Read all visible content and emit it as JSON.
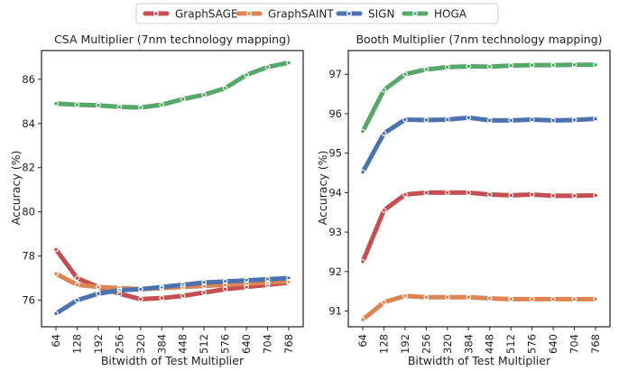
{
  "legend": [
    "GraphSAGE",
    "GraphSAINT",
    "SIGN",
    "HOGA"
  ],
  "colors": {
    "GraphSAGE": "#c44e52",
    "GraphSAINT": "#dd8452",
    "SIGN": "#4c72b0",
    "HOGA": "#55a868"
  },
  "chart_data": [
    {
      "type": "line",
      "title": "CSA Multiplier (7nm technology mapping)",
      "xlabel": "Bitwidth of Test Multiplier",
      "ylabel": "Accuracy (%)",
      "x": [
        64,
        128,
        192,
        256,
        320,
        384,
        448,
        512,
        576,
        640,
        704,
        768
      ],
      "x_ticks": [
        64,
        128,
        192,
        256,
        320,
        384,
        448,
        512,
        576,
        640,
        704,
        768
      ],
      "y_ticks": [
        76,
        78,
        80,
        82,
        84,
        86
      ],
      "ylim": [
        74.8,
        87.3
      ],
      "series": [
        {
          "name": "GraphSAGE",
          "values": [
            78.3,
            77.0,
            76.6,
            76.3,
            76.05,
            76.1,
            76.2,
            76.35,
            76.5,
            76.6,
            76.7,
            76.8
          ]
        },
        {
          "name": "GraphSAINT",
          "values": [
            77.2,
            76.7,
            76.6,
            76.55,
            76.5,
            76.55,
            76.6,
            76.65,
            76.7,
            76.75,
            76.8,
            76.85
          ]
        },
        {
          "name": "SIGN",
          "values": [
            75.4,
            76.0,
            76.3,
            76.45,
            76.5,
            76.6,
            76.7,
            76.8,
            76.85,
            76.9,
            76.95,
            77.0
          ]
        },
        {
          "name": "HOGA",
          "values": [
            84.9,
            84.85,
            84.82,
            84.75,
            84.72,
            84.85,
            85.1,
            85.3,
            85.6,
            86.2,
            86.55,
            86.75
          ]
        }
      ]
    },
    {
      "type": "line",
      "title": "Booth Multiplier (7nm technology mapping)",
      "xlabel": "Bitwidth of Test Multiplier",
      "ylabel": "Accuracy (%)",
      "x": [
        64,
        128,
        192,
        256,
        320,
        384,
        448,
        512,
        576,
        640,
        704,
        768
      ],
      "x_ticks": [
        64,
        128,
        192,
        256,
        320,
        384,
        448,
        512,
        576,
        640,
        704,
        768
      ],
      "y_ticks": [
        91,
        92,
        93,
        94,
        95,
        96,
        97
      ],
      "ylim": [
        90.6,
        97.6
      ],
      "series": [
        {
          "name": "GraphSAGE",
          "values": [
            92.25,
            93.55,
            93.95,
            94.0,
            94.0,
            94.0,
            93.95,
            93.93,
            93.95,
            93.92,
            93.92,
            93.93
          ]
        },
        {
          "name": "GraphSAINT",
          "values": [
            90.78,
            91.22,
            91.38,
            91.35,
            91.35,
            91.35,
            91.32,
            91.3,
            91.3,
            91.3,
            91.3,
            91.3
          ]
        },
        {
          "name": "SIGN",
          "values": [
            94.52,
            95.5,
            95.85,
            95.84,
            95.85,
            95.9,
            95.83,
            95.83,
            95.85,
            95.83,
            95.84,
            95.87
          ]
        },
        {
          "name": "HOGA",
          "values": [
            95.55,
            96.6,
            97.0,
            97.12,
            97.18,
            97.2,
            97.19,
            97.22,
            97.23,
            97.23,
            97.24,
            97.24
          ]
        }
      ]
    }
  ]
}
